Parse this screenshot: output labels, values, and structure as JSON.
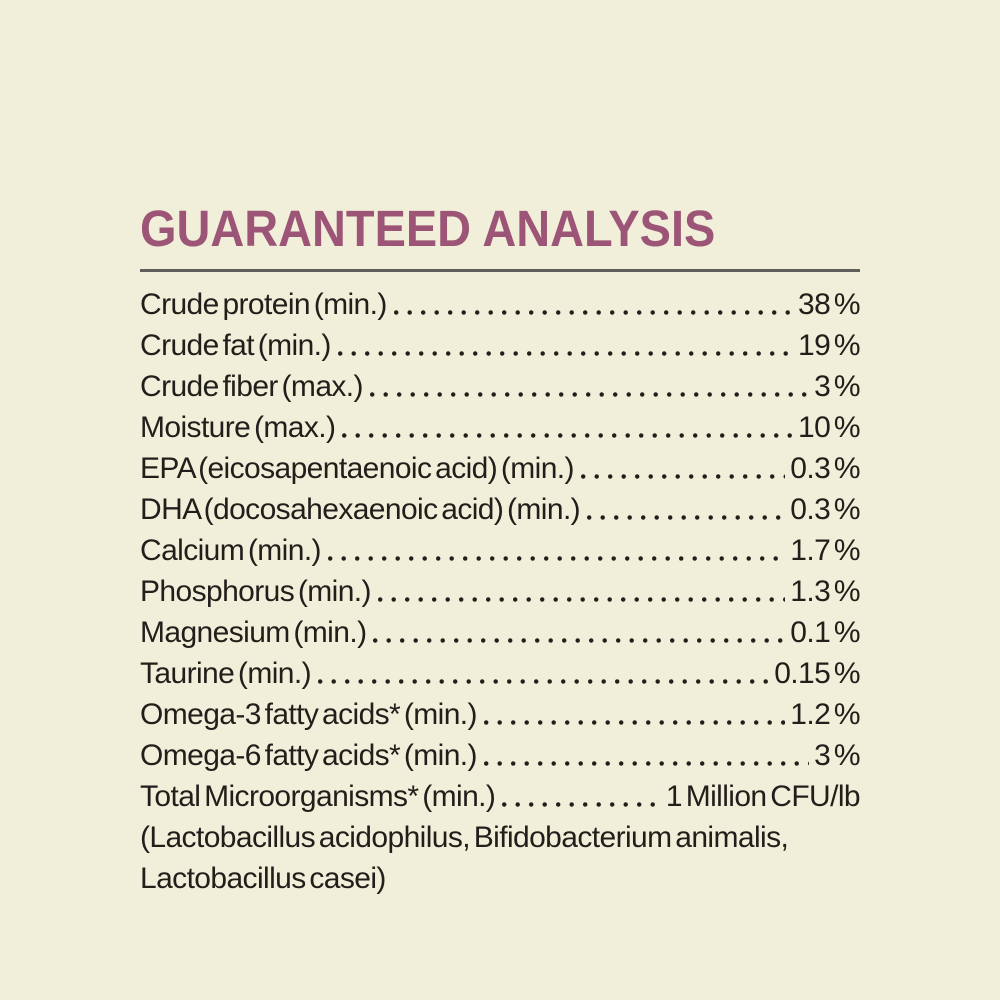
{
  "title": "GUARANTEED ANALYSIS",
  "colors": {
    "background": "#f1eeda",
    "title": "#9c5577",
    "divider": "#5f5f5a",
    "text": "#201f1a"
  },
  "rows": [
    {
      "label": "Crude protein (min.)",
      "value": "38 %"
    },
    {
      "label": "Crude fat (min.)",
      "value": "19 %"
    },
    {
      "label": "Crude fiber (max.)",
      "value": "3 %"
    },
    {
      "label": "Moisture (max.)",
      "value": "10 %"
    },
    {
      "label": "EPA (eicosapentaenoic acid) (min.)",
      "value": "0.3 %"
    },
    {
      "label": "DHA (docosahexaenoic acid) (min.)",
      "value": "0.3 %"
    },
    {
      "label": "Calcium (min.)",
      "value": "1.7 %"
    },
    {
      "label": "Phosphorus (min.)",
      "value": "1.3 %"
    },
    {
      "label": "Magnesium (min.)",
      "value": "0.1 %"
    },
    {
      "label": "Taurine (min.)",
      "value": "0.15 %"
    },
    {
      "label": "Omega-3 fatty acids* (min.)",
      "value": "1.2 %"
    },
    {
      "label": "Omega-6 fatty acids* (min.)",
      "value": "3 %"
    },
    {
      "label": "Total Microorganisms* (min.)",
      "value": "1 Million CFU/lb"
    }
  ],
  "footnote_lines": [
    "(Lactobacillus acidophilus, Bifidobacterium animalis,",
    "Lactobacillus casei)"
  ]
}
